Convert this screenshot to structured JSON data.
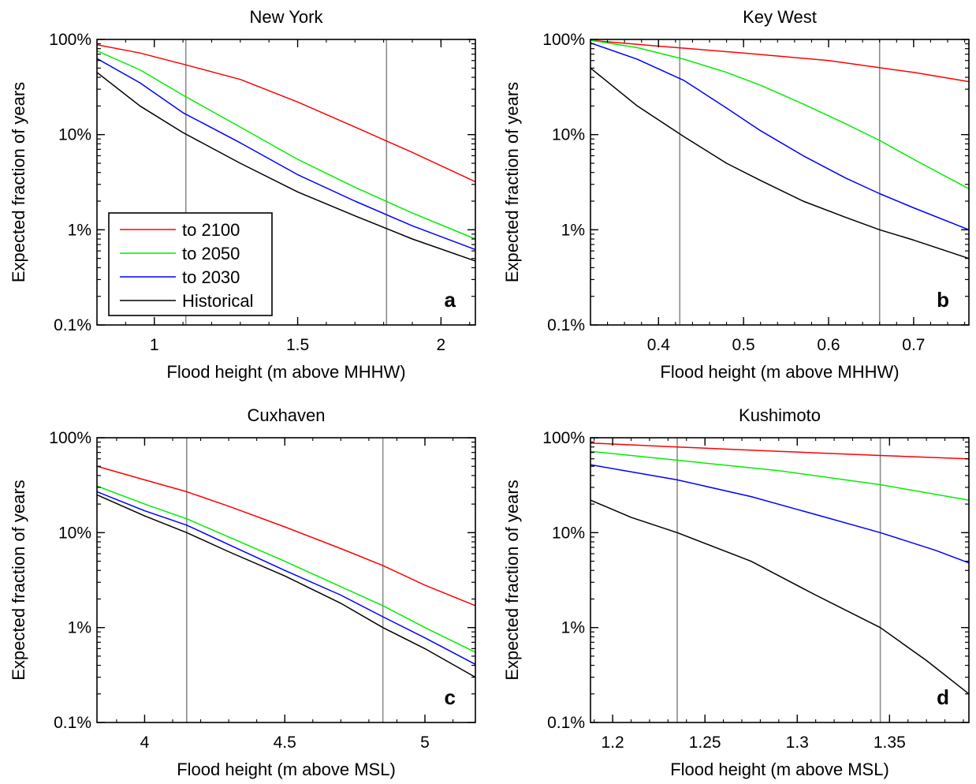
{
  "chart_data": [
    {
      "type": "line",
      "title": "New York",
      "panel_label": "a",
      "xlabel": "Flood height (m above MHHW)",
      "ylabel": "Expected fraction of years",
      "y_scale": "log",
      "xlim": [
        0.8,
        2.12
      ],
      "ylim": [
        0.1,
        100
      ],
      "xticks": [
        1,
        1.5,
        2
      ],
      "xtick_labels": [
        "1",
        "1.5",
        "2"
      ],
      "yticks": [
        0.1,
        1,
        10,
        100
      ],
      "ytick_labels": [
        "0.1%",
        "1%",
        "10%",
        "100%"
      ],
      "reference_lines_x": [
        1.11,
        1.81
      ],
      "grid": false,
      "legend_position": "bottom-left",
      "legend": [
        "to 2100",
        "to 2050",
        "to 2030",
        "Historical"
      ],
      "series": [
        {
          "name": "to 2100",
          "color": "#ff0000",
          "x": [
            0.8,
            0.95,
            1.1,
            1.3,
            1.5,
            1.7,
            1.9,
            2.12
          ],
          "y": [
            88,
            72,
            55,
            38,
            22,
            12,
            6.5,
            3.2
          ]
        },
        {
          "name": "to 2050",
          "color": "#00ee00",
          "x": [
            0.8,
            0.95,
            1.1,
            1.3,
            1.5,
            1.7,
            1.9,
            2.12
          ],
          "y": [
            76,
            48,
            26,
            12,
            5.5,
            2.8,
            1.5,
            0.8
          ]
        },
        {
          "name": "to 2030",
          "color": "#0000ff",
          "x": [
            0.8,
            0.95,
            1.1,
            1.3,
            1.5,
            1.7,
            1.9,
            2.12
          ],
          "y": [
            63,
            35,
            17,
            8.2,
            3.8,
            2.0,
            1.1,
            0.62
          ]
        },
        {
          "name": "Historical",
          "color": "#000000",
          "x": [
            0.8,
            0.95,
            1.1,
            1.3,
            1.5,
            1.7,
            1.9,
            2.12
          ],
          "y": [
            45,
            20,
            10.5,
            5.0,
            2.5,
            1.4,
            0.8,
            0.47
          ]
        }
      ]
    },
    {
      "type": "line",
      "title": "Key West",
      "panel_label": "b",
      "xlabel": "Flood height (m above MHHW)",
      "ylabel": "Expected fraction of years",
      "y_scale": "log",
      "xlim": [
        0.32,
        0.765
      ],
      "ylim": [
        0.1,
        100
      ],
      "xticks": [
        0.4,
        0.5,
        0.6,
        0.7
      ],
      "xtick_labels": [
        "0.4",
        "0.5",
        "0.6",
        "0.7"
      ],
      "yticks": [
        0.1,
        1,
        10,
        100
      ],
      "ytick_labels": [
        "0.1%",
        "1%",
        "10%",
        "100%"
      ],
      "reference_lines_x": [
        0.425,
        0.66
      ],
      "grid": false,
      "series": [
        {
          "name": "to 2100",
          "color": "#ff0000",
          "x": [
            0.32,
            0.4,
            0.5,
            0.6,
            0.7,
            0.765
          ],
          "y": [
            98,
            85,
            72,
            60,
            45,
            36
          ]
        },
        {
          "name": "to 2050",
          "color": "#00ee00",
          "x": [
            0.32,
            0.375,
            0.43,
            0.48,
            0.52,
            0.57,
            0.62,
            0.66,
            0.7,
            0.765
          ],
          "y": [
            98,
            82,
            62,
            45,
            33,
            21,
            13,
            8.7,
            5.5,
            2.7
          ]
        },
        {
          "name": "to 2030",
          "color": "#0000ff",
          "x": [
            0.32,
            0.375,
            0.43,
            0.48,
            0.52,
            0.57,
            0.62,
            0.66,
            0.7,
            0.765
          ],
          "y": [
            92,
            62,
            37,
            19,
            11,
            6.0,
            3.5,
            2.4,
            1.7,
            1.0
          ]
        },
        {
          "name": "Historical",
          "color": "#000000",
          "x": [
            0.32,
            0.375,
            0.43,
            0.48,
            0.52,
            0.57,
            0.62,
            0.66,
            0.7,
            0.765
          ],
          "y": [
            50,
            20,
            9.5,
            5.0,
            3.3,
            2.0,
            1.35,
            1.0,
            0.78,
            0.5
          ]
        }
      ]
    },
    {
      "type": "line",
      "title": "Cuxhaven",
      "panel_label": "c",
      "xlabel": "Flood height (m above MSL)",
      "ylabel": "Expected fraction of years",
      "y_scale": "log",
      "xlim": [
        3.83,
        5.18
      ],
      "ylim": [
        0.1,
        100
      ],
      "xticks": [
        4,
        4.5,
        5
      ],
      "xtick_labels": [
        "4",
        "4.5",
        "5"
      ],
      "yticks": [
        0.1,
        1,
        10,
        100
      ],
      "ytick_labels": [
        "0.1%",
        "1%",
        "10%",
        "100%"
      ],
      "reference_lines_x": [
        4.15,
        4.85
      ],
      "grid": false,
      "series": [
        {
          "name": "to 2100",
          "color": "#ff0000",
          "x": [
            3.83,
            4.0,
            4.15,
            4.3,
            4.5,
            4.7,
            4.85,
            5.0,
            5.18
          ],
          "y": [
            50,
            36,
            27,
            19,
            11.5,
            6.8,
            4.5,
            2.8,
            1.7
          ]
        },
        {
          "name": "to 2050",
          "color": "#00ee00",
          "x": [
            3.83,
            4.0,
            4.15,
            4.3,
            4.5,
            4.7,
            4.85,
            5.0,
            5.18
          ],
          "y": [
            31,
            20,
            14,
            9.0,
            5.0,
            2.7,
            1.7,
            1.0,
            0.55
          ]
        },
        {
          "name": "to 2030",
          "color": "#0000ff",
          "x": [
            3.83,
            4.0,
            4.15,
            4.3,
            4.5,
            4.7,
            4.85,
            5.0,
            5.18
          ],
          "y": [
            27,
            17,
            12,
            7.5,
            4.0,
            2.2,
            1.3,
            0.78,
            0.41
          ]
        },
        {
          "name": "Historical",
          "color": "#000000",
          "x": [
            3.83,
            4.0,
            4.15,
            4.3,
            4.5,
            4.7,
            4.85,
            5.0,
            5.18
          ],
          "y": [
            25,
            15,
            10,
            6.3,
            3.5,
            1.8,
            1.0,
            0.6,
            0.3
          ]
        }
      ]
    },
    {
      "type": "line",
      "title": "Kushimoto",
      "panel_label": "d",
      "xlabel": "Flood height (m above MSL)",
      "ylabel": "Expected fraction of years",
      "y_scale": "log",
      "xlim": [
        1.188,
        1.393
      ],
      "ylim": [
        0.1,
        100
      ],
      "xticks": [
        1.2,
        1.25,
        1.3,
        1.35
      ],
      "xtick_labels": [
        "1.2",
        "1.25",
        "1.3",
        "1.35"
      ],
      "yticks": [
        0.1,
        1,
        10,
        100
      ],
      "ytick_labels": [
        "0.1%",
        "1%",
        "10%",
        "100%"
      ],
      "reference_lines_x": [
        1.235,
        1.345
      ],
      "grid": false,
      "series": [
        {
          "name": "to 2100",
          "color": "#ff0000",
          "x": [
            1.188,
            1.235,
            1.29,
            1.345,
            1.393
          ],
          "y": [
            88,
            80,
            72,
            65,
            60
          ]
        },
        {
          "name": "to 2050",
          "color": "#00ee00",
          "x": [
            1.188,
            1.235,
            1.29,
            1.345,
            1.393
          ],
          "y": [
            72,
            58,
            45,
            32,
            22
          ]
        },
        {
          "name": "to 2030",
          "color": "#0000ff",
          "x": [
            1.188,
            1.235,
            1.275,
            1.31,
            1.345,
            1.375,
            1.393
          ],
          "y": [
            52,
            36,
            24,
            15.5,
            10,
            6.5,
            4.8
          ]
        },
        {
          "name": "Historical",
          "color": "#000000",
          "x": [
            1.188,
            1.21,
            1.235,
            1.275,
            1.31,
            1.345,
            1.37,
            1.393
          ],
          "y": [
            22,
            14.5,
            10,
            5.0,
            2.2,
            1.0,
            0.45,
            0.2
          ]
        }
      ]
    }
  ]
}
